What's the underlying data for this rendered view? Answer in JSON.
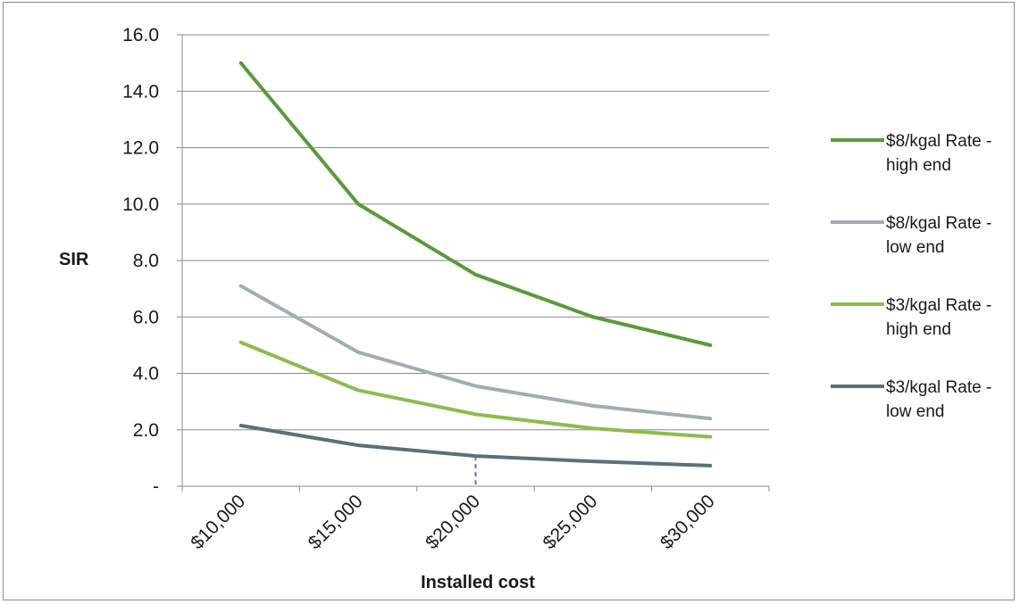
{
  "chart_data": {
    "type": "line",
    "xlabel": "Installed cost",
    "ylabel": "SIR",
    "categories": [
      "$10,000",
      "$15,000",
      "$20,000",
      "$25,000",
      "$30,000"
    ],
    "y_ticks": [
      "-",
      "2.0",
      "4.0",
      "6.0",
      "8.0",
      "10.0",
      "12.0",
      "14.0",
      "16.0"
    ],
    "ylim": [
      0,
      16
    ],
    "grid": "horizontal",
    "legend_position": "right",
    "series": [
      {
        "name": "$8/kgal Rate - high end",
        "legend_lines": [
          "$8/kgal Rate -",
          "high end"
        ],
        "color": "#5a9a3a",
        "values": [
          15.0,
          10.0,
          7.5,
          6.0,
          5.0
        ]
      },
      {
        "name": "$8/kgal Rate - low end",
        "legend_lines": [
          "$8/kgal Rate -",
          "low end"
        ],
        "color": "#a2adb1",
        "values": [
          7.1,
          4.75,
          3.55,
          2.85,
          2.4
        ]
      },
      {
        "name": "$3/kgal Rate - high end",
        "legend_lines": [
          "$3/kgal Rate -",
          "high end"
        ],
        "color": "#8cbc4e",
        "values": [
          5.1,
          3.4,
          2.55,
          2.05,
          1.75
        ]
      },
      {
        "name": "$3/kgal Rate - low end",
        "legend_lines": [
          "$3/kgal Rate -",
          "low end"
        ],
        "color": "#5b7079",
        "values": [
          2.15,
          1.45,
          1.07,
          0.88,
          0.73
        ]
      }
    ],
    "reference_marker": {
      "category": "$20,000",
      "value": 1.07,
      "style": "dashed",
      "color": "#4f81bd"
    }
  }
}
